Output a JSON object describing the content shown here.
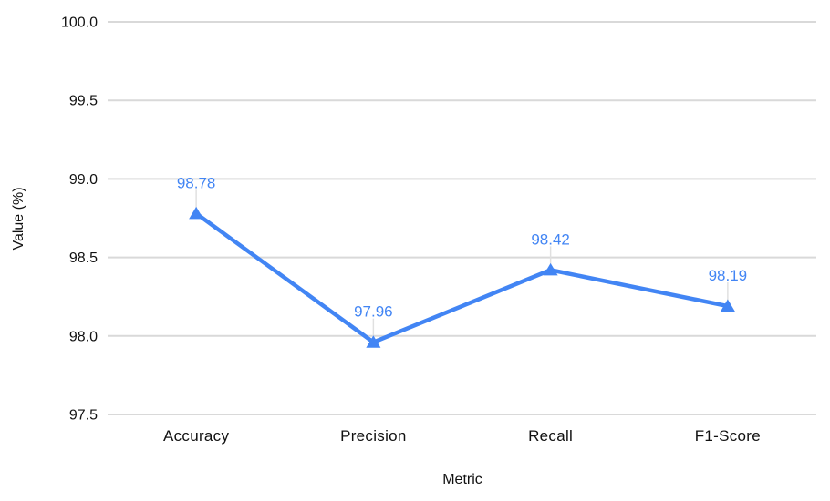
{
  "chart_data": {
    "type": "line",
    "categories": [
      "Accuracy",
      "Precision",
      "Recall",
      "F1-Score"
    ],
    "series": [
      {
        "name": "Value (%)",
        "values": [
          98.78,
          97.96,
          98.42,
          98.19
        ],
        "labels": [
          "98.78",
          "97.96",
          "98.42",
          "98.19"
        ]
      }
    ],
    "title": "",
    "xlabel": "Metric",
    "ylabel": "Value (%)",
    "ylim": [
      97.5,
      100.0
    ],
    "ytick_step": 0.5,
    "yticks": [
      "100.0",
      "99.5",
      "99.0",
      "98.5",
      "98.0",
      "97.5"
    ],
    "grid": true,
    "legend_position": "none",
    "marker_shape": "triangle-up"
  },
  "colors": {
    "series_line": "#4285f4",
    "marker_fill": "#4285f4",
    "value_label": "#4285f4",
    "gridline": "#d9d9d9",
    "leader_line": "#e0e0e0",
    "axis_text": "#111111",
    "background": "#ffffff"
  }
}
